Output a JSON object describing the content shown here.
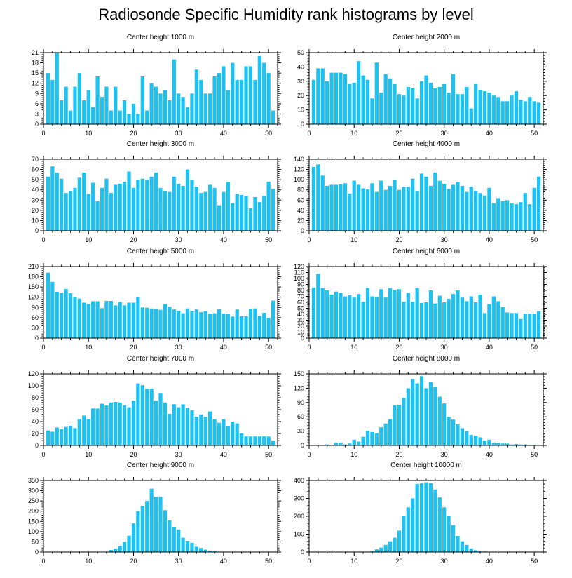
{
  "title": "Radiosonde Specific Humidity rank histograms by level",
  "colors": {
    "bar": "#1ec1f0",
    "axis": "#000000",
    "background": "#ffffff"
  },
  "chart_data": [
    {
      "type": "bar",
      "title": "Center height 1000 m",
      "x": [
        1,
        2,
        3,
        4,
        5,
        6,
        7,
        8,
        9,
        10,
        11,
        12,
        13,
        14,
        15,
        16,
        17,
        18,
        19,
        20,
        21,
        22,
        23,
        24,
        25,
        26,
        27,
        28,
        29,
        30,
        31,
        32,
        33,
        34,
        35,
        36,
        37,
        38,
        39,
        40,
        41,
        42,
        43,
        44,
        45,
        46,
        47,
        48,
        49,
        50,
        51
      ],
      "values": [
        15,
        13,
        21,
        7,
        11,
        4,
        11,
        15,
        7,
        10,
        5,
        14,
        8,
        11,
        4,
        11,
        4,
        7,
        3,
        6,
        3,
        14,
        4,
        12,
        11,
        9,
        10,
        7,
        19,
        9,
        8,
        5,
        9,
        16,
        13,
        9,
        9,
        14,
        15,
        17,
        10,
        18,
        13,
        13,
        17,
        17,
        13,
        20,
        18,
        15,
        4
      ],
      "xlim": [
        0,
        52
      ],
      "ylim": [
        0,
        21
      ],
      "xticks": [
        0,
        10,
        20,
        30,
        40,
        50
      ],
      "yticks": [
        0,
        3,
        6,
        9,
        12,
        15,
        18,
        21
      ]
    },
    {
      "type": "bar",
      "title": "Center height 2000 m",
      "x": [
        1,
        2,
        3,
        4,
        5,
        6,
        7,
        8,
        9,
        10,
        11,
        12,
        13,
        14,
        15,
        16,
        17,
        18,
        19,
        20,
        21,
        22,
        23,
        24,
        25,
        26,
        27,
        28,
        29,
        30,
        31,
        32,
        33,
        34,
        35,
        36,
        37,
        38,
        39,
        40,
        41,
        42,
        43,
        44,
        45,
        46,
        47,
        48,
        49,
        50,
        51
      ],
      "values": [
        31,
        39,
        39,
        30,
        36,
        36,
        36,
        35,
        28,
        29,
        44,
        34,
        31,
        18,
        43,
        22,
        35,
        32,
        28,
        21,
        20,
        26,
        25,
        18,
        30,
        34,
        29,
        25,
        26,
        28,
        22,
        35,
        21,
        21,
        26,
        11,
        28,
        24,
        23,
        22,
        20,
        19,
        16,
        16,
        20,
        23,
        17,
        16,
        19,
        16,
        15
      ],
      "xlim": [
        0,
        52
      ],
      "ylim": [
        0,
        50
      ],
      "xticks": [
        0,
        10,
        20,
        30,
        40,
        50
      ],
      "yticks": [
        0,
        10,
        20,
        30,
        40,
        50
      ]
    },
    {
      "type": "bar",
      "title": "Center height 3000 m",
      "x": [
        1,
        2,
        3,
        4,
        5,
        6,
        7,
        8,
        9,
        10,
        11,
        12,
        13,
        14,
        15,
        16,
        17,
        18,
        19,
        20,
        21,
        22,
        23,
        24,
        25,
        26,
        27,
        28,
        29,
        30,
        31,
        32,
        33,
        34,
        35,
        36,
        37,
        38,
        39,
        40,
        41,
        42,
        43,
        44,
        45,
        46,
        47,
        48,
        49,
        50,
        51
      ],
      "values": [
        53,
        63,
        57,
        51,
        37,
        39,
        42,
        52,
        57,
        36,
        47,
        29,
        42,
        51,
        37,
        45,
        46,
        48,
        58,
        42,
        50,
        51,
        50,
        53,
        57,
        42,
        39,
        38,
        53,
        46,
        44,
        60,
        50,
        43,
        37,
        38,
        45,
        42,
        25,
        38,
        48,
        27,
        36,
        35,
        34,
        22,
        33,
        28,
        34,
        48,
        41
      ],
      "xlim": [
        0,
        52
      ],
      "ylim": [
        0,
        70
      ],
      "xticks": [
        0,
        10,
        20,
        30,
        40,
        50
      ],
      "yticks": [
        0,
        10,
        20,
        30,
        40,
        50,
        60,
        70
      ]
    },
    {
      "type": "bar",
      "title": "Center height 4000 m",
      "x": [
        1,
        2,
        3,
        4,
        5,
        6,
        7,
        8,
        9,
        10,
        11,
        12,
        13,
        14,
        15,
        16,
        17,
        18,
        19,
        20,
        21,
        22,
        23,
        24,
        25,
        26,
        27,
        28,
        29,
        30,
        31,
        32,
        33,
        34,
        35,
        36,
        37,
        38,
        39,
        40,
        41,
        42,
        43,
        44,
        45,
        46,
        47,
        48,
        49,
        50,
        51
      ],
      "values": [
        125,
        130,
        108,
        88,
        90,
        90,
        91,
        93,
        73,
        98,
        90,
        83,
        81,
        93,
        76,
        98,
        80,
        88,
        100,
        80,
        86,
        86,
        102,
        78,
        112,
        106,
        88,
        114,
        98,
        92,
        82,
        90,
        96,
        88,
        76,
        86,
        78,
        74,
        69,
        84,
        54,
        64,
        58,
        60,
        54,
        52,
        56,
        74,
        52,
        84,
        106
      ],
      "xlim": [
        0,
        52
      ],
      "ylim": [
        0,
        140
      ],
      "xticks": [
        0,
        10,
        20,
        30,
        40,
        50
      ],
      "yticks": [
        0,
        20,
        40,
        60,
        80,
        100,
        120,
        140
      ]
    },
    {
      "type": "bar",
      "title": "Center height 5000 m",
      "x": [
        1,
        2,
        3,
        4,
        5,
        6,
        7,
        8,
        9,
        10,
        11,
        12,
        13,
        14,
        15,
        16,
        17,
        18,
        19,
        20,
        21,
        22,
        23,
        24,
        25,
        26,
        27,
        28,
        29,
        30,
        31,
        32,
        33,
        34,
        35,
        36,
        37,
        38,
        39,
        40,
        41,
        42,
        43,
        44,
        45,
        46,
        47,
        48,
        49,
        50,
        51
      ],
      "values": [
        192,
        165,
        136,
        133,
        144,
        132,
        120,
        116,
        104,
        100,
        108,
        108,
        88,
        109,
        109,
        96,
        106,
        96,
        104,
        104,
        120,
        90,
        89,
        87,
        86,
        83,
        100,
        92,
        84,
        80,
        73,
        87,
        80,
        84,
        76,
        79,
        72,
        73,
        85,
        72,
        71,
        63,
        84,
        64,
        64,
        86,
        87,
        65,
        74,
        59,
        110
      ],
      "xlim": [
        0,
        52
      ],
      "ylim": [
        0,
        210
      ],
      "xticks": [
        0,
        10,
        20,
        30,
        40,
        50
      ],
      "yticks": [
        0,
        30,
        60,
        90,
        120,
        150,
        180,
        210
      ]
    },
    {
      "type": "bar",
      "title": "Center height 6000 m",
      "x": [
        1,
        2,
        3,
        4,
        5,
        6,
        7,
        8,
        9,
        10,
        11,
        12,
        13,
        14,
        15,
        16,
        17,
        18,
        19,
        20,
        21,
        22,
        23,
        24,
        25,
        26,
        27,
        28,
        29,
        30,
        31,
        32,
        33,
        34,
        35,
        36,
        37,
        38,
        39,
        40,
        41,
        42,
        43,
        44,
        45,
        46,
        47,
        48,
        49,
        50,
        51
      ],
      "values": [
        85,
        108,
        84,
        80,
        73,
        78,
        76,
        70,
        72,
        68,
        74,
        61,
        84,
        70,
        69,
        82,
        68,
        84,
        80,
        82,
        61,
        76,
        61,
        84,
        59,
        60,
        80,
        58,
        71,
        60,
        66,
        74,
        80,
        68,
        62,
        70,
        60,
        73,
        42,
        57,
        70,
        62,
        52,
        43,
        42,
        42,
        32,
        41,
        41,
        40,
        45
      ],
      "xlim": [
        0,
        52
      ],
      "ylim": [
        0,
        120
      ],
      "xticks": [
        0,
        10,
        20,
        30,
        40,
        50
      ],
      "yticks": [
        0,
        10,
        20,
        30,
        40,
        50,
        60,
        70,
        80,
        90,
        100,
        110,
        120
      ]
    },
    {
      "type": "bar",
      "title": "Center height 7000 m",
      "x": [
        1,
        2,
        3,
        4,
        5,
        6,
        7,
        8,
        9,
        10,
        11,
        12,
        13,
        14,
        15,
        16,
        17,
        18,
        19,
        20,
        21,
        22,
        23,
        24,
        25,
        26,
        27,
        28,
        29,
        30,
        31,
        32,
        33,
        34,
        35,
        36,
        37,
        38,
        39,
        40,
        41,
        42,
        43,
        44,
        45,
        46,
        47,
        48,
        49,
        50,
        51
      ],
      "values": [
        25,
        23,
        30,
        27,
        31,
        33,
        29,
        44,
        50,
        44,
        62,
        62,
        70,
        67,
        72,
        73,
        72,
        67,
        64,
        75,
        104,
        101,
        95,
        95,
        75,
        88,
        72,
        53,
        69,
        64,
        69,
        63,
        59,
        48,
        52,
        48,
        57,
        44,
        38,
        44,
        32,
        40,
        37,
        20,
        15,
        15,
        15,
        15,
        15,
        15,
        8
      ],
      "xlim": [
        0,
        52
      ],
      "ylim": [
        0,
        120
      ],
      "xticks": [
        0,
        10,
        20,
        30,
        40,
        50
      ],
      "yticks": [
        0,
        20,
        40,
        60,
        80,
        100,
        120
      ]
    },
    {
      "type": "bar",
      "title": "Center height 8000 m",
      "x": [
        1,
        2,
        3,
        4,
        5,
        6,
        7,
        8,
        9,
        10,
        11,
        12,
        13,
        14,
        15,
        16,
        17,
        18,
        19,
        20,
        21,
        22,
        23,
        24,
        25,
        26,
        27,
        28,
        29,
        30,
        31,
        32,
        33,
        34,
        35,
        36,
        37,
        38,
        39,
        40,
        41,
        42,
        43,
        44,
        45,
        46,
        47,
        48,
        49,
        50,
        51
      ],
      "values": [
        0,
        0,
        0,
        2,
        0,
        6,
        6,
        2,
        4,
        12,
        8,
        18,
        31,
        28,
        25,
        38,
        46,
        55,
        84,
        85,
        100,
        120,
        139,
        130,
        145,
        120,
        133,
        122,
        102,
        88,
        60,
        54,
        44,
        36,
        30,
        22,
        20,
        17,
        10,
        12,
        6,
        5,
        4,
        4,
        2,
        3,
        2,
        2,
        1,
        1,
        0
      ],
      "xlim": [
        0,
        52
      ],
      "ylim": [
        0,
        150
      ],
      "xticks": [
        0,
        10,
        20,
        30,
        40,
        50
      ],
      "yticks": [
        0,
        30,
        60,
        90,
        120,
        150
      ]
    },
    {
      "type": "bar",
      "title": "Center height 9000 m",
      "x": [
        1,
        2,
        3,
        4,
        5,
        6,
        7,
        8,
        9,
        10,
        11,
        12,
        13,
        14,
        15,
        16,
        17,
        18,
        19,
        20,
        21,
        22,
        23,
        24,
        25,
        26,
        27,
        28,
        29,
        30,
        31,
        32,
        33,
        34,
        35,
        36,
        37,
        38,
        39,
        40,
        41,
        42,
        43,
        44,
        45,
        46,
        47,
        48,
        49,
        50,
        51
      ],
      "values": [
        0,
        0,
        0,
        0,
        0,
        0,
        0,
        0,
        0,
        0,
        0,
        0,
        0,
        2,
        10,
        16,
        30,
        50,
        80,
        140,
        200,
        225,
        250,
        310,
        270,
        270,
        205,
        155,
        120,
        110,
        70,
        55,
        45,
        26,
        20,
        12,
        7,
        5,
        2,
        2,
        0,
        0,
        0,
        0,
        0,
        0,
        0,
        0,
        0,
        0,
        0
      ],
      "xlim": [
        0,
        52
      ],
      "ylim": [
        0,
        350
      ],
      "xticks": [
        0,
        10,
        20,
        30,
        40,
        50
      ],
      "yticks": [
        0,
        50,
        100,
        150,
        200,
        250,
        300,
        350
      ]
    },
    {
      "type": "bar",
      "title": "Center height 10000 m",
      "x": [
        1,
        2,
        3,
        4,
        5,
        6,
        7,
        8,
        9,
        10,
        11,
        12,
        13,
        14,
        15,
        16,
        17,
        18,
        19,
        20,
        21,
        22,
        23,
        24,
        25,
        26,
        27,
        28,
        29,
        30,
        31,
        32,
        33,
        34,
        35,
        36,
        37,
        38,
        39,
        40,
        41,
        42,
        43,
        44,
        45,
        46,
        47,
        48,
        49,
        50,
        51
      ],
      "values": [
        0,
        0,
        0,
        0,
        0,
        0,
        0,
        0,
        0,
        0,
        0,
        0,
        2,
        5,
        15,
        25,
        40,
        60,
        80,
        120,
        200,
        250,
        300,
        380,
        385,
        390,
        385,
        350,
        305,
        250,
        200,
        150,
        90,
        60,
        40,
        20,
        10,
        5,
        3,
        2,
        1,
        1,
        0,
        0,
        0,
        0,
        0,
        0,
        0,
        0,
        0
      ],
      "xlim": [
        0,
        52
      ],
      "ylim": [
        0,
        400
      ],
      "xticks": [
        0,
        10,
        20,
        30,
        40,
        50
      ],
      "yticks": [
        0,
        100,
        200,
        300,
        400
      ]
    }
  ]
}
